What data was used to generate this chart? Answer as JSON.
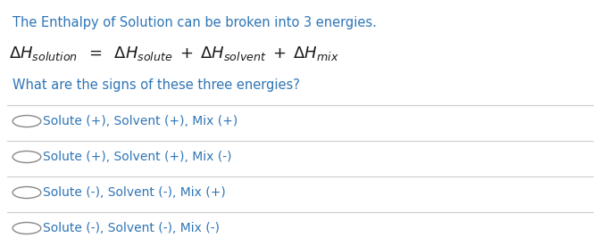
{
  "bg_color": "#ffffff",
  "title_text": "The Enthalpy of Solution can be broken into 3 energies.",
  "title_color": "#2e75b6",
  "title_fontsize": 10.5,
  "question_text": "What are the signs of these three energies?",
  "question_color": "#2e75b6",
  "question_fontsize": 10.5,
  "equation_color": "#1a1a1a",
  "equation_fontsize": 13.0,
  "options": [
    "Solute (+), Solvent (+), Mix (+)",
    "Solute (+), Solvent (+), Mix (-)",
    "Solute (-), Solvent (-), Mix (+)",
    "Solute (-), Solvent (-), Mix (-)"
  ],
  "options_color": "#2e75b6",
  "options_fontsize": 10.0,
  "circle_color": "#888888",
  "line_color": "#cccccc",
  "line_width": 0.8
}
